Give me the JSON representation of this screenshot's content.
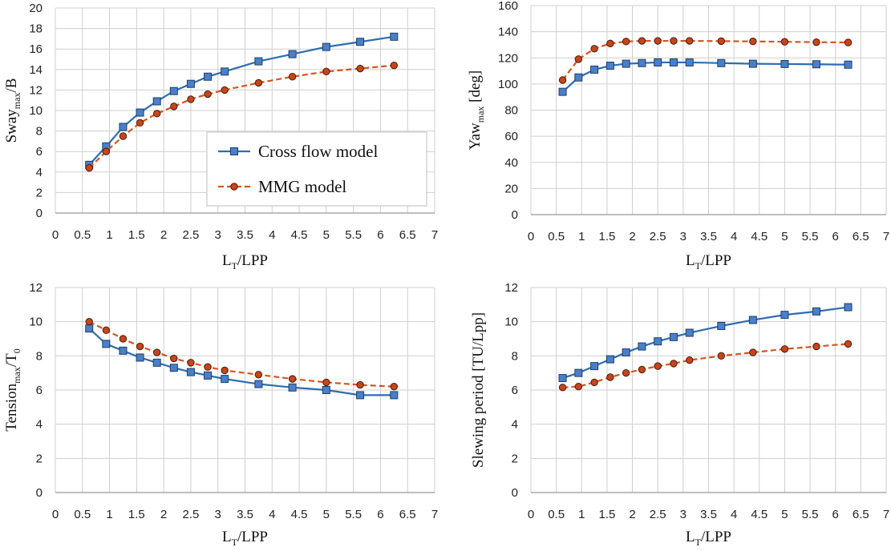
{
  "colors": {
    "cross_flow": "#2e6db0",
    "cross_flow_marker": "#4a7fc9",
    "mmg": "#d9531e",
    "mmg_marker": "#c4461c",
    "grid": "#cfcfcf",
    "axis": "#7f7f7f"
  },
  "legend": {
    "cross_flow": "Cross flow model",
    "mmg": "MMG model"
  },
  "chart_data": [
    {
      "type": "line",
      "id": "sway",
      "title": "",
      "xlabel": {
        "main": "L",
        "sub": "T",
        "rest": "/LPP"
      },
      "ylabel": {
        "main": "Sway",
        "sub": "max",
        "rest": "/B"
      },
      "xlim": [
        0,
        7
      ],
      "ylim": [
        0,
        20
      ],
      "xticks": [
        "0",
        "0.5",
        "1",
        "1.5",
        "2",
        "2.5",
        "3",
        "3.5",
        "4",
        "4.5",
        "5",
        "5.5",
        "6",
        "6.5",
        "7"
      ],
      "yticks": [
        "0",
        "2",
        "4",
        "6",
        "8",
        "10",
        "12",
        "14",
        "16",
        "18",
        "20"
      ],
      "x": [
        0.625,
        0.9375,
        1.25,
        1.5625,
        1.875,
        2.1875,
        2.5,
        2.8125,
        3.125,
        3.75,
        4.375,
        5.0,
        5.625,
        6.25
      ],
      "series": [
        {
          "name": "Cross flow model",
          "values": [
            4.7,
            6.5,
            8.4,
            9.8,
            10.9,
            11.9,
            12.6,
            13.3,
            13.8,
            14.8,
            15.5,
            16.2,
            16.7,
            17.2
          ]
        },
        {
          "name": "MMG model",
          "values": [
            4.4,
            6.0,
            7.5,
            8.8,
            9.7,
            10.4,
            11.1,
            11.6,
            12.0,
            12.7,
            13.3,
            13.8,
            14.1,
            14.4
          ]
        }
      ],
      "legend_position": "center-right"
    },
    {
      "type": "line",
      "id": "yaw",
      "title": "",
      "xlabel": {
        "main": "L",
        "sub": "T",
        "rest": "/LPP"
      },
      "ylabel": {
        "main": "Yaw",
        "sub": "max",
        "rest": " [deg]"
      },
      "xlim": [
        0,
        7
      ],
      "ylim": [
        0,
        160
      ],
      "xticks": [
        "0",
        "0.5",
        "1",
        "1.5",
        "2",
        "2.5",
        "3",
        "3.5",
        "4",
        "4.5",
        "5",
        "5.5",
        "6",
        "6.5",
        "7"
      ],
      "yticks": [
        "0",
        "20",
        "40",
        "60",
        "80",
        "100",
        "120",
        "140",
        "160"
      ],
      "x": [
        0.625,
        0.9375,
        1.25,
        1.5625,
        1.875,
        2.1875,
        2.5,
        2.8125,
        3.125,
        3.75,
        4.375,
        5.0,
        5.625,
        6.25
      ],
      "series": [
        {
          "name": "Cross flow model",
          "values": [
            94,
            105,
            111,
            114,
            115.5,
            116,
            116.5,
            116.5,
            116.5,
            116,
            115.5,
            115.3,
            115.1,
            114.8
          ]
        },
        {
          "name": "MMG model",
          "values": [
            103,
            119,
            127,
            131,
            132.5,
            133,
            133,
            133,
            133,
            132.8,
            132.6,
            132.3,
            132.0,
            131.8
          ]
        }
      ]
    },
    {
      "type": "line",
      "id": "tension",
      "title": "",
      "xlabel": {
        "main": "L",
        "sub": "T",
        "rest": "/LPP"
      },
      "ylabel": {
        "main": "Tension",
        "sub": "max",
        "rest": "/T",
        "sub2": "0"
      },
      "xlim": [
        0,
        7
      ],
      "ylim": [
        0,
        12
      ],
      "xticks": [
        "0",
        "0.5",
        "1",
        "1.5",
        "2",
        "2.5",
        "3",
        "3.5",
        "4",
        "4.5",
        "5",
        "5.5",
        "6",
        "6.5",
        "7"
      ],
      "yticks": [
        "0",
        "2",
        "4",
        "6",
        "8",
        "10",
        "12"
      ],
      "x": [
        0.625,
        0.9375,
        1.25,
        1.5625,
        1.875,
        2.1875,
        2.5,
        2.8125,
        3.125,
        3.75,
        4.375,
        5.0,
        5.625,
        6.25
      ],
      "series": [
        {
          "name": "Cross flow model",
          "values": [
            9.6,
            8.7,
            8.3,
            7.9,
            7.6,
            7.3,
            7.05,
            6.85,
            6.65,
            6.35,
            6.15,
            6.0,
            5.7,
            5.7
          ]
        },
        {
          "name": "MMG model",
          "values": [
            10.0,
            9.5,
            9.0,
            8.55,
            8.2,
            7.85,
            7.6,
            7.35,
            7.15,
            6.9,
            6.65,
            6.45,
            6.3,
            6.2
          ]
        }
      ]
    },
    {
      "type": "line",
      "id": "slewing",
      "title": "",
      "xlabel": {
        "main": "L",
        "sub": "T",
        "rest": "/LPP"
      },
      "ylabel": {
        "main": "Slewing period [TU/Lpp]",
        "sub": "",
        "rest": ""
      },
      "xlim": [
        0,
        7
      ],
      "ylim": [
        0,
        12
      ],
      "xticks": [
        "0",
        "0.5",
        "1",
        "1.5",
        "2",
        "2.5",
        "3",
        "3.5",
        "4",
        "4.5",
        "5",
        "5.5",
        "6",
        "6.5",
        "7"
      ],
      "yticks": [
        "0",
        "2",
        "4",
        "6",
        "8",
        "10",
        "12"
      ],
      "x": [
        0.625,
        0.9375,
        1.25,
        1.5625,
        1.875,
        2.1875,
        2.5,
        2.8125,
        3.125,
        3.75,
        4.375,
        5.0,
        5.625,
        6.25
      ],
      "series": [
        {
          "name": "Cross flow model",
          "values": [
            6.7,
            7.0,
            7.4,
            7.8,
            8.2,
            8.55,
            8.85,
            9.1,
            9.35,
            9.75,
            10.1,
            10.4,
            10.6,
            10.85
          ]
        },
        {
          "name": "MMG model",
          "values": [
            6.15,
            6.2,
            6.45,
            6.75,
            7.0,
            7.2,
            7.4,
            7.55,
            7.75,
            8.0,
            8.2,
            8.4,
            8.55,
            8.7
          ]
        }
      ]
    }
  ]
}
